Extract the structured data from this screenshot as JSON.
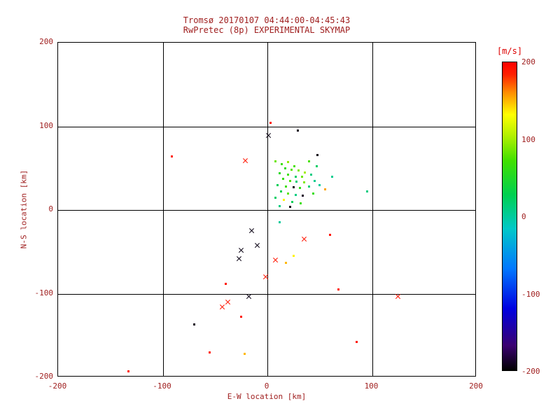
{
  "title": {
    "line1": "Tromsø 20170107 04:44:00-04:45:43",
    "line2": "RwPretec (8p) EXPERIMENTAL SKYMAP"
  },
  "axes": {
    "xlabel": "E-W location [km]",
    "ylabel": "N-S location [km]",
    "xlim": [
      -200,
      200
    ],
    "ylim": [
      -200,
      200
    ],
    "xticks": [
      -200,
      -100,
      0,
      100,
      200
    ],
    "yticks": [
      -200,
      -100,
      0,
      100,
      200
    ],
    "grid": true
  },
  "colorbar": {
    "label": "[m/s]",
    "min": -200,
    "max": 200,
    "ticks": [
      200,
      100,
      0,
      -100,
      -200
    ]
  },
  "colors": {
    "text": "#a02020",
    "mps_label": "#dd0000",
    "axis": "#000000",
    "background": "#ffffff"
  },
  "chart_data": {
    "type": "scatter",
    "title": "Tromsø 20170107 04:44:00-04:45:43 / RwPretec (8p) EXPERIMENTAL SKYMAP",
    "xlabel": "E-W location [km]",
    "ylabel": "N-S location [km]",
    "value_label": "velocity [m/s]",
    "point_format": [
      "x_km",
      "y_km",
      "velocity_ms",
      "marker(d=dot,x=cross)"
    ],
    "points": [
      [
        -91,
        64,
        190,
        "d"
      ],
      [
        -21,
        59,
        190,
        "x"
      ],
      [
        3,
        104,
        190,
        "d"
      ],
      [
        1,
        89,
        -195,
        "x"
      ],
      [
        29,
        95,
        -195,
        "d"
      ],
      [
        48,
        66,
        -195,
        "d"
      ],
      [
        8,
        58,
        85,
        "d"
      ],
      [
        14,
        55,
        70,
        "d"
      ],
      [
        20,
        57,
        95,
        "d"
      ],
      [
        26,
        52,
        75,
        "d"
      ],
      [
        17,
        50,
        60,
        "d"
      ],
      [
        23,
        48,
        80,
        "d"
      ],
      [
        30,
        47,
        90,
        "d"
      ],
      [
        36,
        45,
        100,
        "d"
      ],
      [
        12,
        44,
        55,
        "d"
      ],
      [
        20,
        42,
        70,
        "d"
      ],
      [
        27,
        40,
        20,
        "d"
      ],
      [
        33,
        40,
        85,
        "d"
      ],
      [
        42,
        42,
        10,
        "d"
      ],
      [
        15,
        37,
        65,
        "d"
      ],
      [
        22,
        35,
        75,
        "d"
      ],
      [
        28,
        34,
        15,
        "d"
      ],
      [
        35,
        33,
        90,
        "d"
      ],
      [
        45,
        35,
        5,
        "d"
      ],
      [
        10,
        30,
        25,
        "d"
      ],
      [
        18,
        28,
        70,
        "d"
      ],
      [
        25,
        27,
        -195,
        "d"
      ],
      [
        31,
        26,
        60,
        "d"
      ],
      [
        40,
        28,
        15,
        "d"
      ],
      [
        50,
        30,
        0,
        "d"
      ],
      [
        13,
        22,
        30,
        "d"
      ],
      [
        20,
        20,
        80,
        "d"
      ],
      [
        27,
        18,
        10,
        "d"
      ],
      [
        34,
        17,
        -190,
        "d"
      ],
      [
        44,
        20,
        65,
        "d"
      ],
      [
        8,
        15,
        20,
        "d"
      ],
      [
        16,
        12,
        135,
        "d"
      ],
      [
        24,
        10,
        25,
        "d"
      ],
      [
        32,
        8,
        70,
        "d"
      ],
      [
        12,
        5,
        10,
        "d"
      ],
      [
        22,
        4,
        -195,
        "d"
      ],
      [
        55,
        25,
        155,
        "d"
      ],
      [
        47,
        52,
        20,
        "d"
      ],
      [
        40,
        58,
        75,
        "d"
      ],
      [
        62,
        40,
        5,
        "d"
      ],
      [
        95,
        22,
        10,
        "d"
      ],
      [
        12,
        -15,
        0,
        "d"
      ],
      [
        -15,
        -25,
        -195,
        "x"
      ],
      [
        -10,
        -42,
        -195,
        "x"
      ],
      [
        35,
        -35,
        190,
        "x"
      ],
      [
        60,
        -30,
        190,
        "d"
      ],
      [
        -25,
        -48,
        -195,
        "x"
      ],
      [
        -27,
        -58,
        -195,
        "x"
      ],
      [
        8,
        -60,
        190,
        "x"
      ],
      [
        18,
        -63,
        150,
        "d"
      ],
      [
        25,
        -55,
        135,
        "d"
      ],
      [
        -2,
        -80,
        190,
        "x"
      ],
      [
        -40,
        -88,
        190,
        "d"
      ],
      [
        -18,
        -103,
        -195,
        "x"
      ],
      [
        -38,
        -110,
        190,
        "x"
      ],
      [
        -43,
        -116,
        190,
        "x"
      ],
      [
        -25,
        -128,
        190,
        "d"
      ],
      [
        -70,
        -137,
        -195,
        "d"
      ],
      [
        85,
        -158,
        190,
        "d"
      ],
      [
        -22,
        -172,
        150,
        "d"
      ],
      [
        -55,
        -170,
        190,
        "d"
      ],
      [
        -133,
        -193,
        190,
        "d"
      ],
      [
        125,
        -103,
        190,
        "x"
      ],
      [
        68,
        -95,
        190,
        "d"
      ]
    ]
  }
}
